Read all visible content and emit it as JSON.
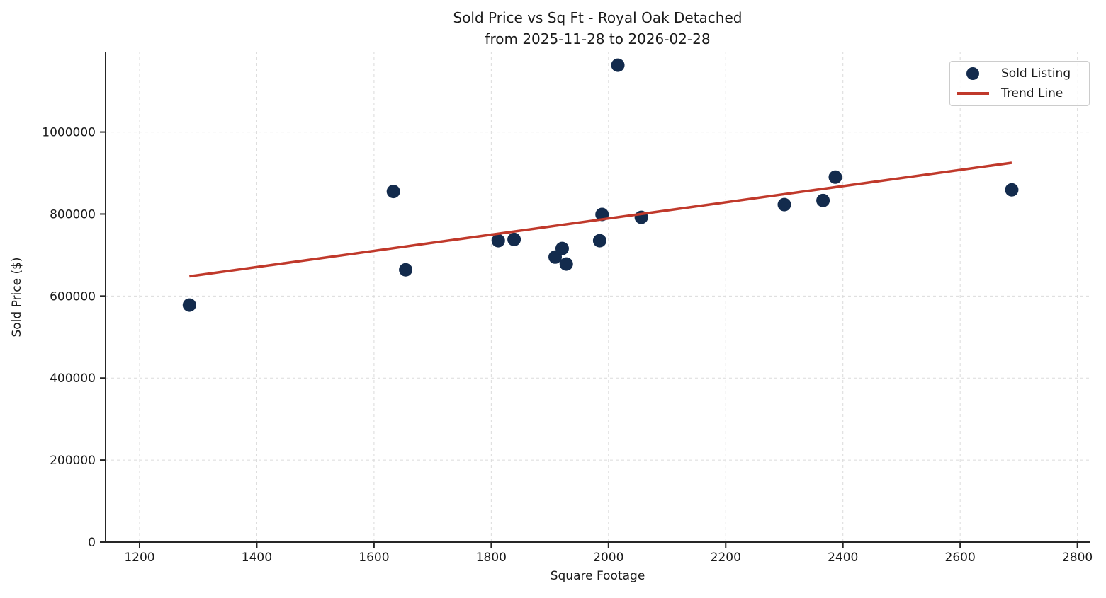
{
  "chart_data": {
    "type": "scatter",
    "title_line1": "Sold Price vs Sq Ft - Royal Oak Detached",
    "title_line2": "from 2025-11-28 to 2026-02-28",
    "xlabel": "Square Footage",
    "ylabel": "Sold Price ($)",
    "xlim": [
      1142,
      2821
    ],
    "ylim": [
      0,
      1196000
    ],
    "grid": true,
    "legend_position": "upper right",
    "xticks": {
      "values": [
        1200,
        1400,
        1600,
        1800,
        2000,
        2200,
        2400,
        2600,
        2800
      ],
      "labels": [
        "1200",
        "1400",
        "1600",
        "1800",
        "2000",
        "2200",
        "2400",
        "2600",
        "2800"
      ]
    },
    "yticks": {
      "values": [
        0,
        200000,
        400000,
        600000,
        800000,
        1000000
      ],
      "labels": [
        "0",
        "200000",
        "400000",
        "600000",
        "800000",
        "1000000"
      ]
    },
    "legend": [
      {
        "label": "Sold Listing",
        "marker": "dot"
      },
      {
        "label": "Trend Line",
        "marker": "line"
      }
    ],
    "colors": {
      "scatter": "#132B4D",
      "trend": "#C0392B",
      "grid": "#DBDBDB",
      "axis": "#262626",
      "text": "#1A1A1A"
    },
    "series": [
      {
        "name": "Sold Listing",
        "type": "scatter",
        "points": [
          {
            "sqft": 1285,
            "price": 578000
          },
          {
            "sqft": 1633,
            "price": 855000
          },
          {
            "sqft": 1654,
            "price": 664000
          },
          {
            "sqft": 1812,
            "price": 735000
          },
          {
            "sqft": 1839,
            "price": 738000
          },
          {
            "sqft": 1909,
            "price": 695000
          },
          {
            "sqft": 1921,
            "price": 716000
          },
          {
            "sqft": 1928,
            "price": 678000
          },
          {
            "sqft": 1985,
            "price": 735000
          },
          {
            "sqft": 1989,
            "price": 799000
          },
          {
            "sqft": 2016,
            "price": 1163000
          },
          {
            "sqft": 2056,
            "price": 792000
          },
          {
            "sqft": 2300,
            "price": 823000
          },
          {
            "sqft": 2366,
            "price": 833000
          },
          {
            "sqft": 2387,
            "price": 890000
          },
          {
            "sqft": 2688,
            "price": 859000
          }
        ]
      },
      {
        "name": "Trend Line",
        "type": "line",
        "points": [
          {
            "sqft": 1285,
            "price": 648000
          },
          {
            "sqft": 2688,
            "price": 925000
          }
        ]
      }
    ]
  }
}
